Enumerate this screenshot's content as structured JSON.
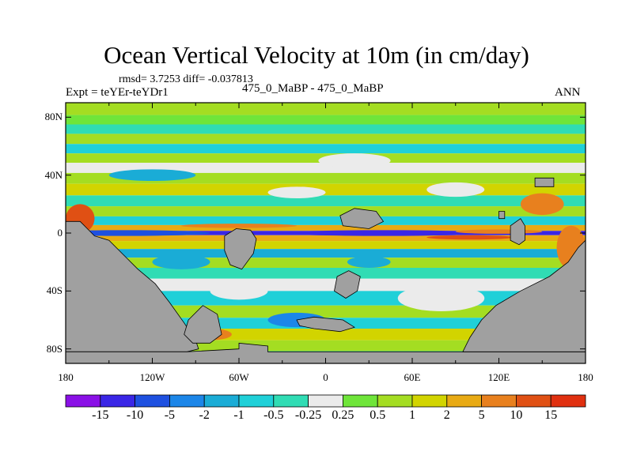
{
  "chart_data": {
    "type": "heatmap",
    "title": "Ocean Vertical Velocity at 10m (in cm/day)",
    "stats_line": "rmsd= 3.7253 diff= -0.037813",
    "experiment_label": "Expt = teYEr-teYDr1",
    "case_label": "475_0_MaBP - 475_0_MaBP",
    "season": "ANN",
    "x_range": [
      -180,
      180
    ],
    "y_range": [
      -90,
      90
    ],
    "lat_ticks": [
      "80N",
      "40N",
      "0",
      "40S",
      "80S"
    ],
    "lat_values": [
      80,
      40,
      0,
      -40,
      -80
    ],
    "lon_ticks": [
      "180",
      "120W",
      "60W",
      "0",
      "60E",
      "120E",
      "180"
    ],
    "lon_values": [
      -180,
      -120,
      -60,
      0,
      60,
      120,
      180
    ],
    "colorbar_levels": [
      "-15",
      "-10",
      "-5",
      "-2",
      "-1",
      "-0.5",
      "-0.25",
      "0.25",
      "0.5",
      "1",
      "2",
      "5",
      "10",
      "15"
    ],
    "colorbar_colors": [
      "#8a10e6",
      "#3a26e6",
      "#1e50e0",
      "#1c86e8",
      "#1aacd6",
      "#20d0d8",
      "#30dcb4",
      "#ebebeb",
      "#6fe53a",
      "#a4dd22",
      "#d2d400",
      "#e8aa14",
      "#e8801e",
      "#e05014",
      "#e03010"
    ],
    "land_color": "#a0a0a0",
    "zonal_bands": [
      {
        "lat": 85,
        "value": 0.5
      },
      {
        "lat": 78,
        "value": 0.25
      },
      {
        "lat": 72,
        "value": -0.5
      },
      {
        "lat": 65,
        "value": 0.5
      },
      {
        "lat": 58,
        "value": -1
      },
      {
        "lat": 52,
        "value": 0.75
      },
      {
        "lat": 45,
        "value": 0.1
      },
      {
        "lat": 38,
        "value": 0.5
      },
      {
        "lat": 30,
        "value": 1
      },
      {
        "lat": 22,
        "value": -0.5
      },
      {
        "lat": 15,
        "value": 0.5
      },
      {
        "lat": 8,
        "value": -1
      },
      {
        "lat": 3,
        "value": 3
      },
      {
        "lat": 0,
        "value": -15
      },
      {
        "lat": -3,
        "value": 3
      },
      {
        "lat": -8,
        "value": 1.5
      },
      {
        "lat": -14,
        "value": -2
      },
      {
        "lat": -20,
        "value": 0.5
      },
      {
        "lat": -28,
        "value": -0.5
      },
      {
        "lat": -35,
        "value": 0.1
      },
      {
        "lat": -45,
        "value": -1
      },
      {
        "lat": -55,
        "value": 0.5
      },
      {
        "lat": -62,
        "value": -0.75
      },
      {
        "lat": -70,
        "value": 1
      },
      {
        "lat": -78,
        "value": 0.5
      },
      {
        "lat": -85,
        "value": -0.5
      }
    ],
    "features": [
      {
        "lon": -140,
        "lat": 0,
        "w": 120,
        "h": 4,
        "value": -10
      },
      {
        "lon": 40,
        "lat": 0,
        "w": 140,
        "h": 4,
        "value": -12
      },
      {
        "lon": 120,
        "lat": 1,
        "w": 60,
        "h": 3,
        "value": 5
      },
      {
        "lon": -60,
        "lat": 5,
        "w": 80,
        "h": 3,
        "value": 5
      },
      {
        "lon": 100,
        "lat": -3,
        "w": 60,
        "h": 3,
        "value": 10
      },
      {
        "lon": -120,
        "lat": 40,
        "w": 60,
        "h": 8,
        "value": -2
      },
      {
        "lon": 20,
        "lat": 50,
        "w": 50,
        "h": 10,
        "value": 0.1
      },
      {
        "lon": -20,
        "lat": 28,
        "w": 40,
        "h": 8,
        "value": 0.1
      },
      {
        "lon": 90,
        "lat": 30,
        "w": 40,
        "h": 10,
        "value": 0.1
      },
      {
        "lon": -150,
        "lat": -30,
        "w": 40,
        "h": 15,
        "value": 0.1
      },
      {
        "lon": -60,
        "lat": -40,
        "w": 40,
        "h": 12,
        "value": 0.1
      },
      {
        "lon": 80,
        "lat": -45,
        "w": 60,
        "h": 18,
        "value": 0.1
      },
      {
        "lon": -100,
        "lat": -20,
        "w": 40,
        "h": 10,
        "value": -2
      },
      {
        "lon": -20,
        "lat": -60,
        "w": 40,
        "h": 10,
        "value": -5
      },
      {
        "lon": 150,
        "lat": 20,
        "w": 30,
        "h": 15,
        "value": 5
      },
      {
        "lon": -170,
        "lat": 10,
        "w": 20,
        "h": 20,
        "value": 10
      },
      {
        "lon": 170,
        "lat": -10,
        "w": 20,
        "h": 30,
        "value": 5
      },
      {
        "lon": -80,
        "lat": -70,
        "w": 30,
        "h": 8,
        "value": 5
      },
      {
        "lon": 140,
        "lat": -70,
        "w": 40,
        "h": 8,
        "value": -1
      },
      {
        "lon": 30,
        "lat": -20,
        "w": 30,
        "h": 8,
        "value": -2
      }
    ],
    "land_polygons": [
      [
        [
          -180,
          8
        ],
        [
          -170,
          8
        ],
        [
          -165,
          3
        ],
        [
          -160,
          -2
        ],
        [
          -150,
          -5
        ],
        [
          -140,
          -15
        ],
        [
          -130,
          -25
        ],
        [
          -118,
          -35
        ],
        [
          -108,
          -48
        ],
        [
          -98,
          -62
        ],
        [
          -90,
          -74
        ],
        [
          -88,
          -80
        ],
        [
          -96,
          -82
        ],
        [
          -180,
          -82
        ]
      ],
      [
        [
          -95,
          -60
        ],
        [
          -85,
          -50
        ],
        [
          -75,
          -56
        ],
        [
          -72,
          -70
        ],
        [
          -80,
          -76
        ],
        [
          -92,
          -76
        ],
        [
          -98,
          -70
        ]
      ],
      [
        [
          -180,
          -82
        ],
        [
          -180,
          -90
        ],
        [
          180,
          -90
        ],
        [
          180,
          -82
        ],
        [
          -40,
          -82
        ],
        [
          -40,
          -78
        ],
        [
          -60,
          -76
        ],
        [
          -60,
          -80
        ],
        [
          -96,
          -82
        ]
      ],
      [
        [
          95,
          -82
        ],
        [
          100,
          -72
        ],
        [
          108,
          -60
        ],
        [
          118,
          -50
        ],
        [
          135,
          -40
        ],
        [
          155,
          -30
        ],
        [
          168,
          -20
        ],
        [
          175,
          -10
        ],
        [
          180,
          -5
        ],
        [
          180,
          -82
        ]
      ],
      [
        [
          -70,
          -2
        ],
        [
          -62,
          3
        ],
        [
          -52,
          2
        ],
        [
          -48,
          -4
        ],
        [
          -50,
          -14
        ],
        [
          -58,
          -25
        ],
        [
          -66,
          -22
        ],
        [
          -70,
          -12
        ]
      ],
      [
        [
          8,
          -30
        ],
        [
          16,
          -26
        ],
        [
          24,
          -30
        ],
        [
          22,
          -40
        ],
        [
          14,
          -45
        ],
        [
          6,
          -40
        ]
      ],
      [
        [
          -20,
          -60
        ],
        [
          -8,
          -58
        ],
        [
          12,
          -60
        ],
        [
          20,
          -65
        ],
        [
          10,
          -68
        ],
        [
          -8,
          -66
        ],
        [
          -18,
          -64
        ]
      ],
      [
        [
          10,
          12
        ],
        [
          20,
          17
        ],
        [
          35,
          15
        ],
        [
          40,
          8
        ],
        [
          30,
          3
        ],
        [
          12,
          5
        ]
      ],
      [
        [
          128,
          5
        ],
        [
          135,
          10
        ],
        [
          138,
          5
        ],
        [
          138,
          -5
        ],
        [
          134,
          -8
        ],
        [
          128,
          -5
        ]
      ],
      [
        [
          145,
          38
        ],
        [
          158,
          38
        ],
        [
          158,
          32
        ],
        [
          145,
          32
        ]
      ],
      [
        [
          120,
          15
        ],
        [
          124,
          15
        ],
        [
          124,
          10
        ],
        [
          120,
          10
        ]
      ]
    ]
  },
  "colorbar_title": ""
}
